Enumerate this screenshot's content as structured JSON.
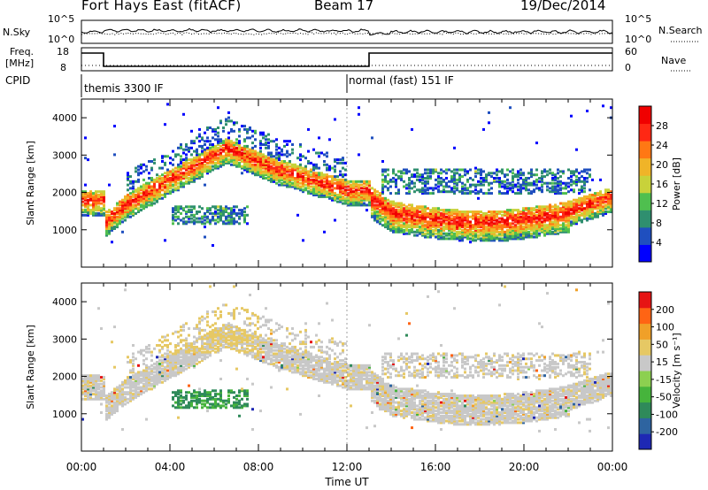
{
  "header": {
    "title": "Fort Hays East (fitACF)",
    "beam": "Beam 17",
    "date": "19/Dec/2014"
  },
  "strips": {
    "nsky_label": "N.Sky",
    "nsearch_label": "N.Search",
    "nsky_ticks": [
      "10^5",
      "10^0"
    ],
    "nsearch_ticks": [
      "10^5",
      "10^0"
    ],
    "freq_label_1": "Freq.",
    "freq_label_2": "[MHz]",
    "freq_ticks": [
      "18",
      "8"
    ],
    "nave_label": "Nave",
    "nave_ticks": [
      "60",
      "0"
    ],
    "cpid_label": "CPID",
    "cpid_segments": [
      {
        "label": "themis 3300 IF",
        "start_hour": 0
      },
      {
        "label": "normal (fast) 151 IF",
        "start_hour": 12
      }
    ]
  },
  "chart_data": [
    {
      "type": "heatmap",
      "name": "power",
      "xlabel": "Time UT",
      "ylabel": "Slant Range [km]",
      "x_tick_labels": [
        "00:00",
        "04:00",
        "08:00",
        "12:00",
        "16:00",
        "20:00",
        "00:00"
      ],
      "x_range_hours": [
        0,
        24
      ],
      "ylim": [
        0,
        4500
      ],
      "y_ticks": [
        1000,
        2000,
        3000,
        4000
      ],
      "colorbar_label": "Power [dB]",
      "colorbar_ticks": [
        "4",
        "8",
        "12",
        "16",
        "20",
        "24",
        "28"
      ],
      "colorbar_colors": [
        "#0000ff",
        "#1f4fbf",
        "#2f8f6f",
        "#4fbf4f",
        "#c8d23a",
        "#f0b428",
        "#ff7814",
        "#ff2814",
        "#f00000"
      ]
    },
    {
      "type": "heatmap",
      "name": "velocity",
      "xlabel": "Time UT",
      "ylabel": "Slant Range [km]",
      "x_tick_labels": [
        "00:00",
        "04:00",
        "08:00",
        "12:00",
        "16:00",
        "20:00",
        "00:00"
      ],
      "x_range_hours": [
        0,
        24
      ],
      "ylim": [
        0,
        4500
      ],
      "y_ticks": [
        1000,
        2000,
        3000,
        4000
      ],
      "colorbar_label": "Velocity [m s⁻¹]",
      "colorbar_ticks": [
        "200",
        "100",
        "50",
        "15",
        "-15",
        "-50",
        "-100",
        "-200"
      ],
      "colorbar_colors": [
        "#1e28b4",
        "#2e64a0",
        "#2f8a5a",
        "#46b43c",
        "#8cd050",
        "#c8c8c8",
        "#e6c864",
        "#f0a028",
        "#ff6414",
        "#e61414"
      ]
    }
  ]
}
